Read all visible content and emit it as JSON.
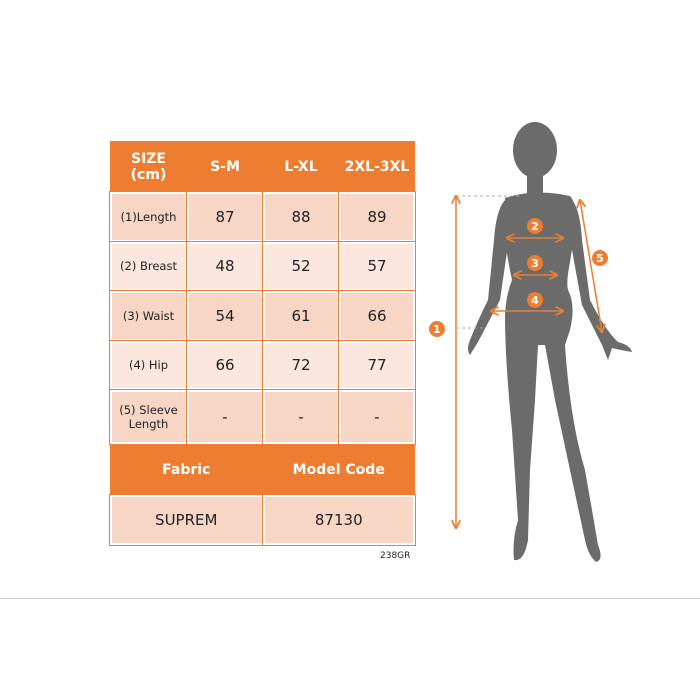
{
  "table": {
    "header": {
      "size": "SIZE\n(cm)",
      "sizes": [
        "S-M",
        "L-XL",
        "2XL-3XL"
      ]
    },
    "rows": [
      {
        "label": "(1)Length",
        "values": [
          "87",
          "88",
          "89"
        ]
      },
      {
        "label": "(2) Breast",
        "values": [
          "48",
          "52",
          "57"
        ]
      },
      {
        "label": "(3) Waist",
        "values": [
          "54",
          "61",
          "66"
        ]
      },
      {
        "label": "(4) Hip",
        "values": [
          "66",
          "72",
          "77"
        ]
      },
      {
        "label": "(5) Sleeve Length",
        "values": [
          "-",
          "-",
          "-"
        ]
      }
    ],
    "footer_headers": [
      "Fabric",
      "Model Code"
    ],
    "footer_values": [
      "SUPREM",
      "87130"
    ]
  },
  "image_code": "238GR",
  "figure": {
    "markers": [
      "1",
      "2",
      "3",
      "4",
      "5"
    ]
  },
  "colors": {
    "accent": "#ed7d31",
    "silhouette": "#6b6b6b"
  }
}
